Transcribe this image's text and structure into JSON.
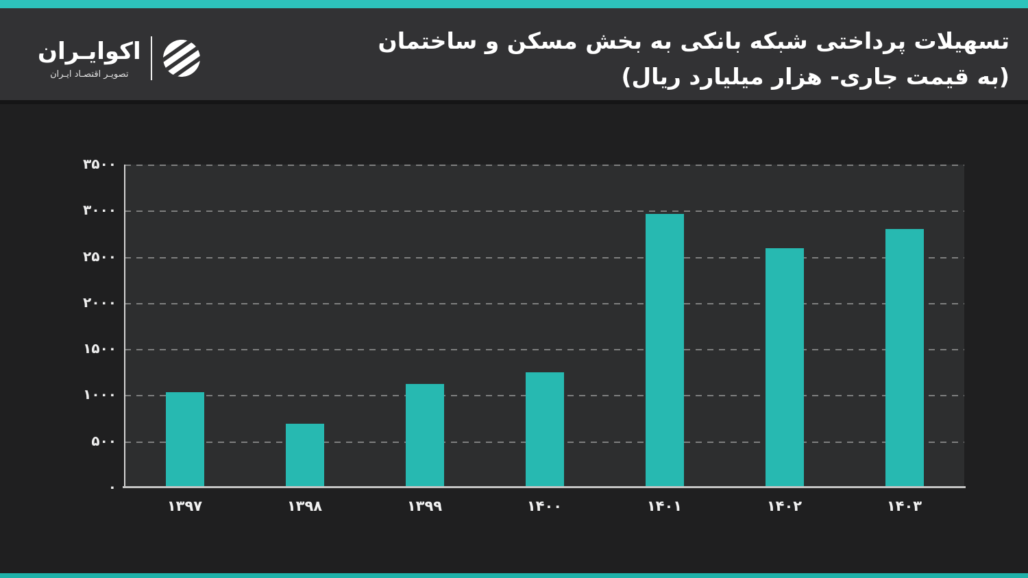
{
  "header": {
    "title_line1": "تسهیلات پرداختی شبکه بانکی به بخش مسکن و ساختمان",
    "title_line2": "(به قیمت جاری- هزار میلیارد ریال)",
    "brand": {
      "name": "اکوایـران",
      "tagline": "تصویـر اقتصـاد ایـران",
      "logo_icon": "ecoiran-striped-circle"
    }
  },
  "colors": {
    "accent_top": "#2dc3bc",
    "accent_bottom": "#1fb1a9",
    "bar": "#27b9b1",
    "header_bg": "#323234",
    "main_bg": "#1f1f20",
    "plot_bg": "#2d2e2f",
    "grid": "#8d8d8d",
    "axis": "#c4c4c4",
    "text": "#ffffff"
  },
  "chart_data": {
    "type": "bar",
    "title": "تسهیلات پرداختی شبکه بانکی به بخش مسکن و ساختمان",
    "subtitle": "(به قیمت جاری- هزار میلیارد ریال)",
    "unit": "هزار میلیارد ریال",
    "categories": [
      "۱۳۹۷",
      "۱۳۹۸",
      "۱۳۹۹",
      "۱۴۰۰",
      "۱۴۰۱",
      "۱۴۰۲",
      "۱۴۰۳"
    ],
    "categories_western": [
      1397,
      1398,
      1399,
      1400,
      1401,
      1402,
      1403
    ],
    "values": [
      1030,
      690,
      1120,
      1245,
      2965,
      2590,
      2805
    ],
    "ylim": [
      0,
      3500
    ],
    "yticks": [
      0,
      500,
      1000,
      1500,
      2000,
      2500,
      3000,
      3500
    ],
    "ytick_labels": [
      "۰",
      "۵۰۰",
      "۱۰۰۰",
      "۱۵۰۰",
      "۲۰۰۰",
      "۲۵۰۰",
      "۳۰۰۰",
      "۳۵۰۰"
    ],
    "grid": "horizontal-dashed",
    "legend": null
  }
}
